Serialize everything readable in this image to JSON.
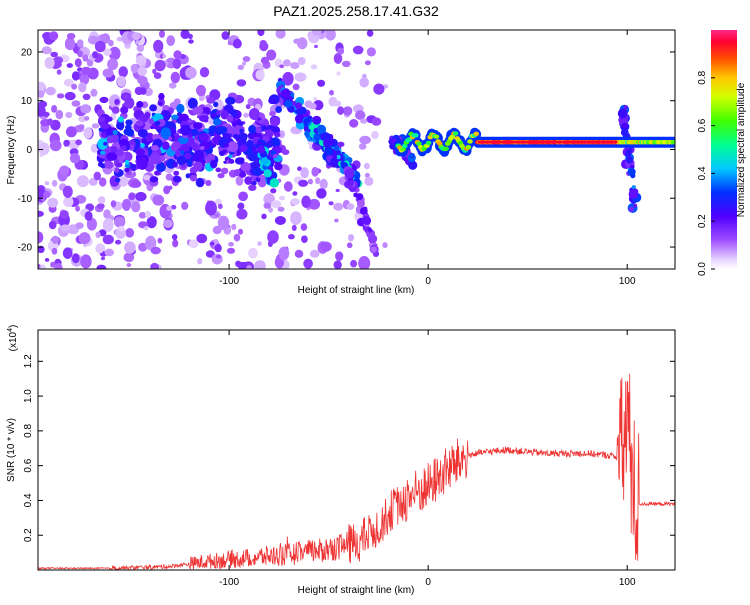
{
  "title": "PAZ1.2025.258.17.41.G32",
  "chart_data": [
    {
      "type": "heatmap",
      "xlabel": "Height of straight line (km)",
      "ylabel": "Frequency (Hz)",
      "xlim": [
        -196,
        124
      ],
      "ylim": [
        -24.5,
        24.5
      ],
      "x_ticks": [
        -100,
        0,
        100
      ],
      "y_ticks": [
        -20,
        -10,
        0,
        10,
        20
      ],
      "colorbar": {
        "label": "Normalized spectral amplitude",
        "range": [
          0.0,
          1.0
        ],
        "ticks": [
          "0.0",
          "0.2",
          "0.4",
          "0.6",
          "0.8"
        ],
        "tick_values": [
          0.0,
          0.2,
          0.4,
          0.6,
          0.8
        ]
      },
      "tones": [
        {
          "x0": -15,
          "x1": 124,
          "y": 1.5,
          "amplitude": 0.95
        },
        {
          "x0": -58,
          "x1": -36,
          "y0": 5,
          "y1": -6,
          "amplitude": 0.45
        },
        {
          "x0": -75,
          "x1": -45,
          "y0": 13,
          "y1": -3,
          "amplitude": 0.35
        }
      ]
    },
    {
      "type": "line",
      "xlabel": "Height of straight line (km)",
      "ylabel": "SNR (10 * v/v)",
      "y_multiplier": "(x10",
      "y_multiplier_exp": "4",
      "y_multiplier_close": ")",
      "xlim": [
        -196,
        124
      ],
      "ylim": [
        0,
        1.38
      ],
      "x_ticks": [
        -100,
        0,
        100
      ],
      "y_ticks": [
        "0.2",
        "0.4",
        "0.6",
        "0.8",
        "1.0",
        "1.2"
      ],
      "y_tick_values": [
        0.2,
        0.4,
        0.6,
        0.8,
        1.0,
        1.2
      ],
      "series_color": "#ee3333",
      "series": [
        {
          "x": [
            -196,
            -160,
            -130,
            -110,
            -90,
            -70,
            -50,
            -35,
            -25,
            -18,
            -10,
            0,
            10,
            20,
            30,
            40,
            50,
            60,
            70,
            80,
            90,
            96,
            98,
            100,
            102,
            104,
            106,
            110,
            124
          ],
          "y": [
            0.01,
            0.01,
            0.02,
            0.05,
            0.07,
            0.09,
            0.12,
            0.16,
            0.25,
            0.35,
            0.42,
            0.48,
            0.58,
            0.66,
            0.68,
            0.69,
            0.68,
            0.67,
            0.67,
            0.67,
            0.66,
            0.65,
            0.7,
            0.9,
            0.6,
            0.4,
            0.38,
            0.38,
            0.38
          ]
        }
      ]
    }
  ]
}
